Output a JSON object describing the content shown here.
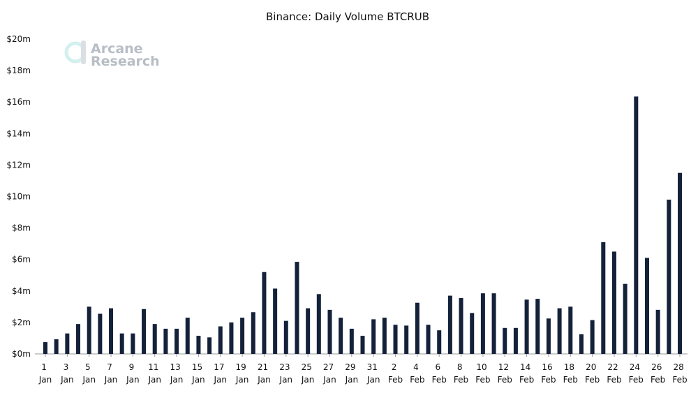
{
  "chart_data": {
    "type": "bar",
    "title": "Binance: Daily Volume BTCRUB",
    "watermark": "Arcane Research",
    "categories": [
      "1 Jan",
      null,
      "3 Jan",
      null,
      "5 Jan",
      null,
      "7 Jan",
      null,
      "9 Jan",
      null,
      "11 Jan",
      null,
      "13 Jan",
      null,
      "15 Jan",
      null,
      "17 Jan",
      null,
      "19 Jan",
      null,
      "21 Jan",
      null,
      "23 Jan",
      null,
      "25 Jan",
      null,
      "27 Jan",
      null,
      "29 Jan",
      null,
      "31 Jan",
      null,
      "2 Feb",
      null,
      "4 Feb",
      null,
      "6 Feb",
      null,
      "8 Feb",
      null,
      "10 Feb",
      null,
      "12 Feb",
      null,
      "14 Feb",
      null,
      "16 Feb",
      null,
      "18 Feb",
      null,
      "20 Feb",
      null,
      "22 Feb",
      null,
      "24 Feb",
      null,
      "26 Feb",
      null,
      "28 Feb"
    ],
    "values": [
      0.75,
      0.93,
      1.3,
      1.9,
      3.0,
      2.55,
      2.9,
      1.3,
      1.3,
      2.85,
      1.9,
      1.6,
      1.6,
      2.3,
      1.15,
      1.05,
      1.75,
      2.0,
      2.3,
      2.65,
      5.2,
      4.15,
      2.1,
      5.85,
      2.9,
      3.8,
      2.8,
      2.3,
      1.6,
      1.15,
      2.2,
      2.3,
      1.85,
      1.8,
      3.25,
      1.85,
      1.5,
      3.7,
      3.55,
      2.6,
      3.85,
      3.85,
      1.65,
      1.65,
      3.45,
      3.5,
      2.25,
      2.9,
      3.0,
      1.25,
      2.15,
      7.1,
      6.5,
      4.45,
      16.35,
      6.1,
      2.8,
      9.8,
      11.5
    ],
    "color": "#14213a",
    "ylim": [
      0,
      20
    ],
    "yticks": [
      {
        "value": 0,
        "label": "$0m"
      },
      {
        "value": 2,
        "label": "$2m"
      },
      {
        "value": 4,
        "label": "$4m"
      },
      {
        "value": 6,
        "label": "$6m"
      },
      {
        "value": 8,
        "label": "$8m"
      },
      {
        "value": 10,
        "label": "$10m"
      },
      {
        "value": 12,
        "label": "$12m"
      },
      {
        "value": 14,
        "label": "$14m"
      },
      {
        "value": 16,
        "label": "$16m"
      },
      {
        "value": 18,
        "label": "$18m"
      },
      {
        "value": 20,
        "label": "$20m"
      }
    ],
    "grid": false
  }
}
